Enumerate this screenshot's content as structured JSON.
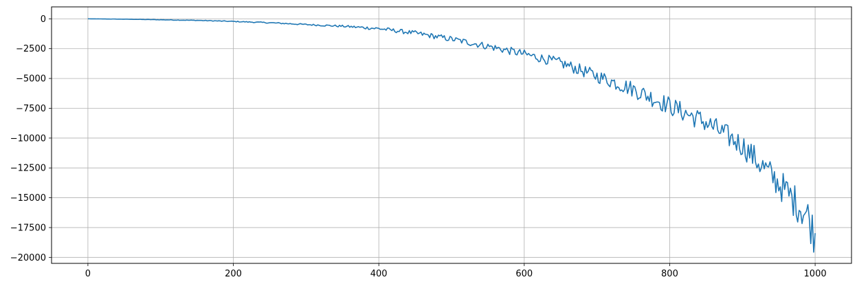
{
  "chart_data": {
    "type": "line",
    "title": "",
    "xlabel": "",
    "ylabel": "",
    "xlim": [
      -50,
      1050
    ],
    "ylim": [
      -20500,
      1000
    ],
    "x_ticks": [
      0,
      200,
      400,
      600,
      800,
      1000
    ],
    "x_tick_labels": [
      "0",
      "200",
      "400",
      "600",
      "800",
      "1000"
    ],
    "y_ticks": [
      0,
      -2500,
      -5000,
      -7500,
      -10000,
      -12500,
      -15000,
      -17500,
      -20000
    ],
    "y_tick_labels": [
      "0",
      "−2500",
      "−5000",
      "−7500",
      "−10000",
      "−12500",
      "−15000",
      "−17500",
      "−20000"
    ],
    "grid": true,
    "series": [
      {
        "color": "#1f77b4",
        "x": [
          0,
          50,
          100,
          150,
          200,
          250,
          300,
          350,
          400,
          450,
          500,
          550,
          600,
          650,
          700,
          750,
          800,
          850,
          900,
          950,
          990,
          1000
        ],
        "y": [
          0,
          -30,
          -80,
          -130,
          -220,
          -330,
          -480,
          -620,
          -820,
          -1200,
          -1700,
          -2300,
          -2950,
          -3700,
          -4800,
          -5900,
          -7300,
          -8700,
          -10600,
          -13800,
          -16500,
          -18300
        ],
        "noise_amplitude": [
          0,
          10,
          20,
          25,
          35,
          50,
          60,
          90,
          150,
          200,
          250,
          300,
          350,
          450,
          550,
          700,
          800,
          900,
          1000,
          1300,
          1600,
          1700
        ]
      }
    ]
  }
}
